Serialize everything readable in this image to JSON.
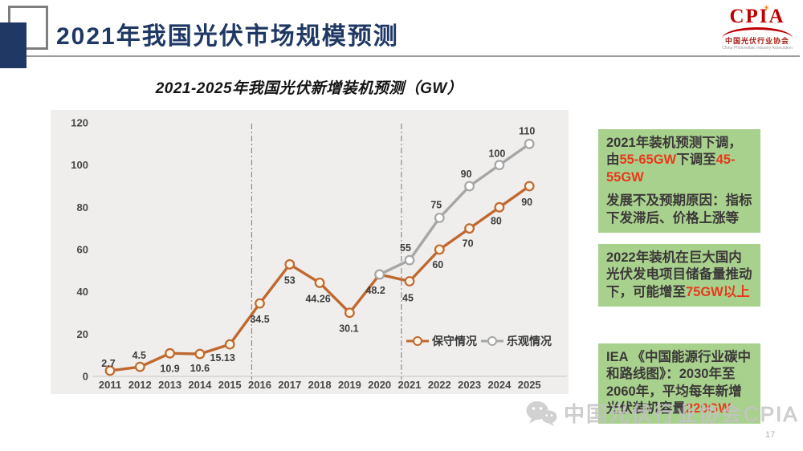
{
  "header": {
    "title": "2021年我国光伏市场规模预测"
  },
  "logo": {
    "name": "CPIA",
    "cn": "中国光伏行业协会",
    "en": "China Photovoltaic Industry Association"
  },
  "chart_data": {
    "type": "line",
    "title": "2021-2025年我国光伏新增装机预测（GW）",
    "xlabel": "",
    "ylabel": "",
    "ylim": [
      0,
      120
    ],
    "yticks": [
      0,
      20,
      40,
      60,
      80,
      100,
      120
    ],
    "grid": false,
    "legend_position": "inside-bottom-right",
    "categories": [
      "2011",
      "2012",
      "2013",
      "2014",
      "2015",
      "2016",
      "2017",
      "2018",
      "2019",
      "2020",
      "2021",
      "2022",
      "2023",
      "2024",
      "2025"
    ],
    "dividers_after": [
      "2015",
      "2020"
    ],
    "series": [
      {
        "name": "保守情况",
        "color": "#c0682f",
        "marker_fill": "#fdf3e5",
        "start_index": 0,
        "values": [
          2.7,
          4.5,
          10.9,
          10.6,
          15.13,
          34.5,
          53,
          44.26,
          30.1,
          48.2,
          45,
          60,
          70,
          80,
          90
        ]
      },
      {
        "name": "乐观情况",
        "color": "#a6a6a6",
        "marker_fill": "#ffffff",
        "start_index": 9,
        "values": [
          48.2,
          55,
          75,
          90,
          100,
          110
        ]
      }
    ]
  },
  "notes": [
    {
      "paragraphs": [
        [
          {
            "t": "2021年装机预测下调，由"
          },
          {
            "t": "55-65GW",
            "red": true
          },
          {
            "t": "下调至"
          },
          {
            "t": "45-55GW",
            "red": true
          }
        ],
        [
          {
            "t": "发展不及预期原因：指标下发滞后、价格上涨等"
          }
        ]
      ]
    },
    {
      "paragraphs": [
        [
          {
            "t": "2022年装机在巨大国内光伏发电项目储备量推动下，可能增至"
          },
          {
            "t": "75GW以上",
            "red": true
          }
        ]
      ]
    },
    {
      "paragraphs": [
        [
          {
            "t": "IEA 《中国能源行业碳中和路线图》：2030年至2060年，平均每年新增光伏装机容量"
          },
          {
            "t": "220GW",
            "red": true
          }
        ]
      ]
    }
  ],
  "watermark": {
    "text": "中国光伏行业协会CPIA"
  },
  "page_number": "17",
  "colors": {
    "title_navy": "#1f3864",
    "note_green": "#a9d18e",
    "highlight_red": "#e8391d",
    "logo_red": "#c00000",
    "conservative_orange": "#c0682f",
    "optimistic_gray": "#a6a6a6"
  }
}
